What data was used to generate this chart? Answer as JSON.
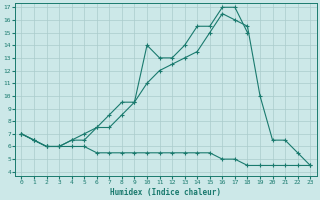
{
  "xlabel": "Humidex (Indice chaleur)",
  "bg_color": "#cce8e8",
  "line_color": "#1a7a6e",
  "grid_color": "#aacccc",
  "xlim": [
    -0.5,
    23.5
  ],
  "ylim": [
    3.7,
    17.3
  ],
  "xticks": [
    0,
    1,
    2,
    3,
    4,
    5,
    6,
    7,
    8,
    9,
    10,
    11,
    12,
    13,
    14,
    15,
    16,
    17,
    18,
    19,
    20,
    21,
    22,
    23
  ],
  "yticks": [
    4,
    5,
    6,
    7,
    8,
    9,
    10,
    11,
    12,
    13,
    14,
    15,
    16,
    17
  ],
  "line1_x": [
    0,
    1,
    2,
    3,
    4,
    5,
    6,
    7,
    8,
    9,
    10,
    11,
    12,
    13,
    14,
    15,
    16,
    17,
    18
  ],
  "line1_y": [
    7,
    6.5,
    6,
    6,
    6.5,
    7,
    7.5,
    8.5,
    9.5,
    9.5,
    14,
    13,
    13,
    14,
    15.5,
    15.5,
    17,
    17,
    15
  ],
  "line2_x": [
    0,
    1,
    2,
    3,
    4,
    5,
    6,
    7,
    8,
    9,
    10,
    11,
    12,
    13,
    14,
    15,
    16,
    17,
    18,
    19,
    20,
    21,
    22,
    23
  ],
  "line2_y": [
    7,
    6.5,
    6,
    6,
    6,
    6,
    5.5,
    5.5,
    5.5,
    5.5,
    5.5,
    5.5,
    5.5,
    5.5,
    5.5,
    5.5,
    5,
    5,
    4.5,
    4.5,
    4.5,
    4.5,
    4.5,
    4.5
  ],
  "line3_x": [
    0,
    1,
    2,
    3,
    4,
    5,
    6,
    7,
    8,
    9,
    10,
    11,
    12,
    13,
    14,
    15,
    16,
    17,
    18,
    19,
    20,
    21,
    22,
    23
  ],
  "line3_y": [
    7,
    6.5,
    6,
    6,
    6.5,
    6.5,
    7.5,
    7.5,
    8.5,
    9.5,
    11,
    12,
    12.5,
    13,
    13.5,
    15,
    16.5,
    16,
    15.5,
    10,
    6.5,
    6.5,
    5.5,
    4.5
  ]
}
